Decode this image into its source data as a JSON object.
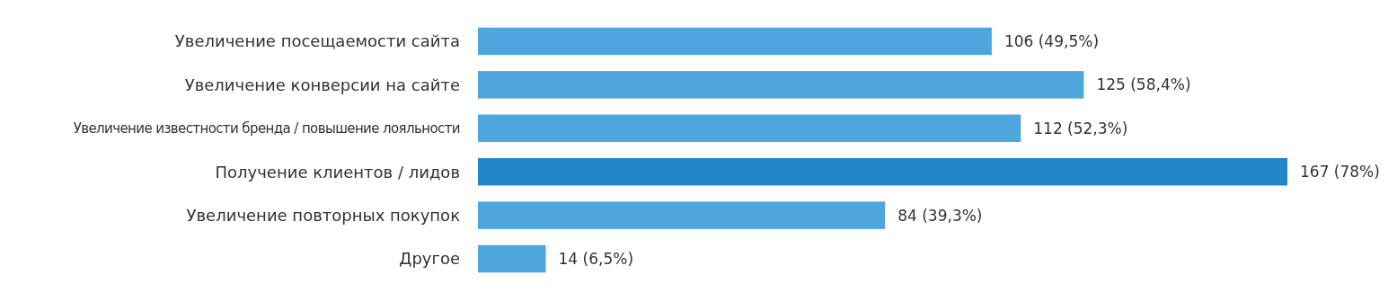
{
  "chart_data": {
    "type": "bar",
    "orientation": "horizontal",
    "categories": [
      "Увеличение посещаемости сайта",
      "Увеличение конверсии на сайте",
      "Увеличение известности бренда / повышение лояльности",
      "Получение клиентов / лидов",
      "Увеличение повторных покупок",
      "Другое"
    ],
    "values": [
      106,
      125,
      112,
      167,
      84,
      14
    ],
    "colors": [
      "#4fa6dc",
      "#4fa6dc",
      "#4fa6dc",
      "#2286c6",
      "#4fa6dc",
      "#4fa6dc"
    ],
    "value_labels": [
      "106 (49,5%)",
      "125 (58,4%)",
      "112 (52,3%)",
      "167 (78%)",
      "84 (39,3%)",
      "14 (6,5%)"
    ]
  }
}
